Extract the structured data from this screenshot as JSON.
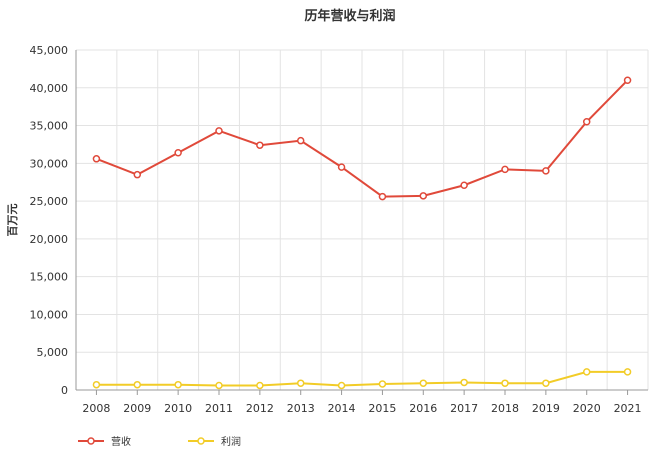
{
  "chart_data": {
    "type": "line",
    "title": "历年营收与利润",
    "xlabel": "",
    "ylabel": "百万元",
    "categories": [
      "2008",
      "2009",
      "2010",
      "2011",
      "2012",
      "2013",
      "2014",
      "2015",
      "2016",
      "2017",
      "2018",
      "2019",
      "2020",
      "2021"
    ],
    "y_ticks": [
      "0",
      "5,000",
      "10,000",
      "15,000",
      "20,000",
      "25,000",
      "30,000",
      "35,000",
      "40,000",
      "45,000"
    ],
    "ylim": [
      0,
      45000
    ],
    "grid": true,
    "legend_position": "bottom-left",
    "series": [
      {
        "name": "营收",
        "color": "#e0493a",
        "values": [
          30600,
          28500,
          31400,
          34300,
          32400,
          33000,
          29500,
          25600,
          25700,
          27100,
          29200,
          29000,
          35500,
          41000
        ]
      },
      {
        "name": "利润",
        "color": "#f2cc27",
        "values": [
          700,
          700,
          700,
          600,
          600,
          900,
          600,
          800,
          900,
          1000,
          900,
          900,
          2400,
          2400
        ]
      }
    ]
  }
}
